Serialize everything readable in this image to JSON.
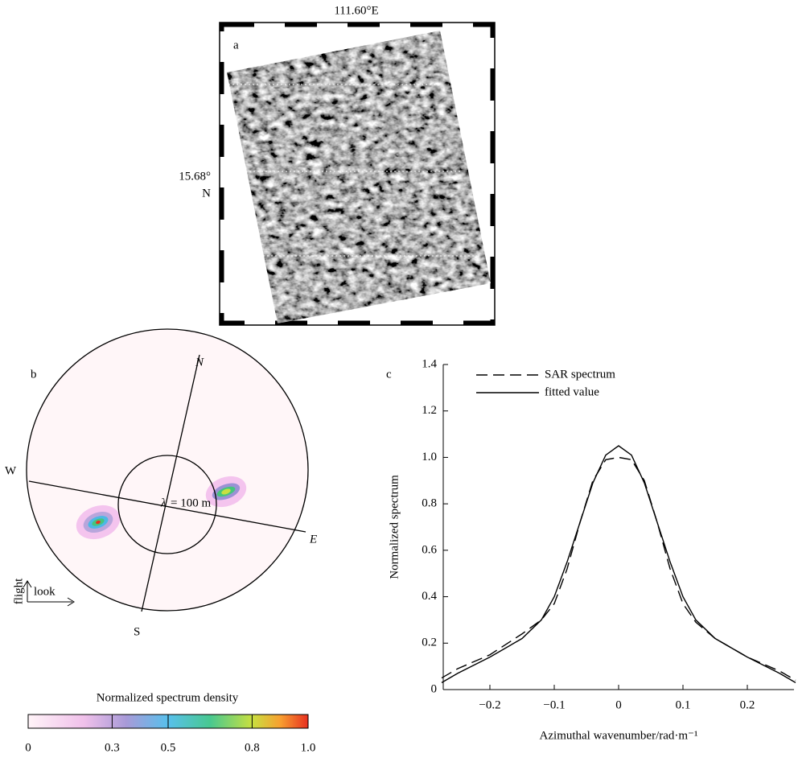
{
  "figure": {
    "panel_a": {
      "label": "a",
      "lon_label": "111.60°E",
      "lat_label": "15.68°",
      "lat_hemisphere": "N"
    },
    "panel_b": {
      "label": "b",
      "north": "N",
      "east": "E",
      "south": "S",
      "west": "W",
      "wavelength_symbol": "λ",
      "wavelength_text": "= 100 m",
      "flight": "flight",
      "look": "look"
    },
    "colorbar": {
      "title": "Normalized spectrum density",
      "range": [
        0,
        1
      ],
      "ticks": [
        0,
        0.3,
        0.5,
        0.8,
        {
          "value": 1,
          "label": "1.0"
        }
      ]
    }
  },
  "chart_data": {
    "type": "line",
    "panel_label": "c",
    "x_label": "Azimuthal wavenumber/rad·m⁻¹",
    "y_label": "Normalized spectrum",
    "x": [
      -0.275,
      -0.25,
      -0.2,
      -0.15,
      -0.12,
      -0.1,
      -0.08,
      -0.06,
      -0.04,
      -0.02,
      0,
      0.02,
      0.04,
      0.06,
      0.08,
      0.1,
      0.12,
      0.15,
      0.2,
      0.25,
      0.275
    ],
    "series": [
      {
        "name": "SAR spectrum",
        "color": "#000000",
        "dash": true,
        "values": [
          0.05,
          0.09,
          0.15,
          0.24,
          0.3,
          0.37,
          0.52,
          0.72,
          0.9,
          0.99,
          1.0,
          0.99,
          0.9,
          0.72,
          0.52,
          0.37,
          0.29,
          0.22,
          0.14,
          0.08,
          0.04
        ]
      },
      {
        "name": "fitted value",
        "color": "#000000",
        "dash": false,
        "values": [
          0.03,
          0.07,
          0.14,
          0.22,
          0.3,
          0.4,
          0.55,
          0.72,
          0.89,
          1.01,
          1.05,
          1.01,
          0.89,
          0.72,
          0.55,
          0.4,
          0.3,
          0.22,
          0.14,
          0.07,
          0.03
        ]
      }
    ],
    "xlim": [
      -0.2725,
      0.2725
    ],
    "xticks": [
      {
        "value": -0.2,
        "label": "−0.2"
      },
      {
        "value": -0.1,
        "label": "−0.1"
      },
      0,
      0.1,
      0.2
    ],
    "ylim": [
      0,
      1.4
    ],
    "yticks": [
      0,
      0.2,
      0.4,
      0.6,
      0.8,
      {
        "value": 1,
        "label": "1.0"
      },
      1.2,
      1.4
    ],
    "legend": "top-left"
  }
}
